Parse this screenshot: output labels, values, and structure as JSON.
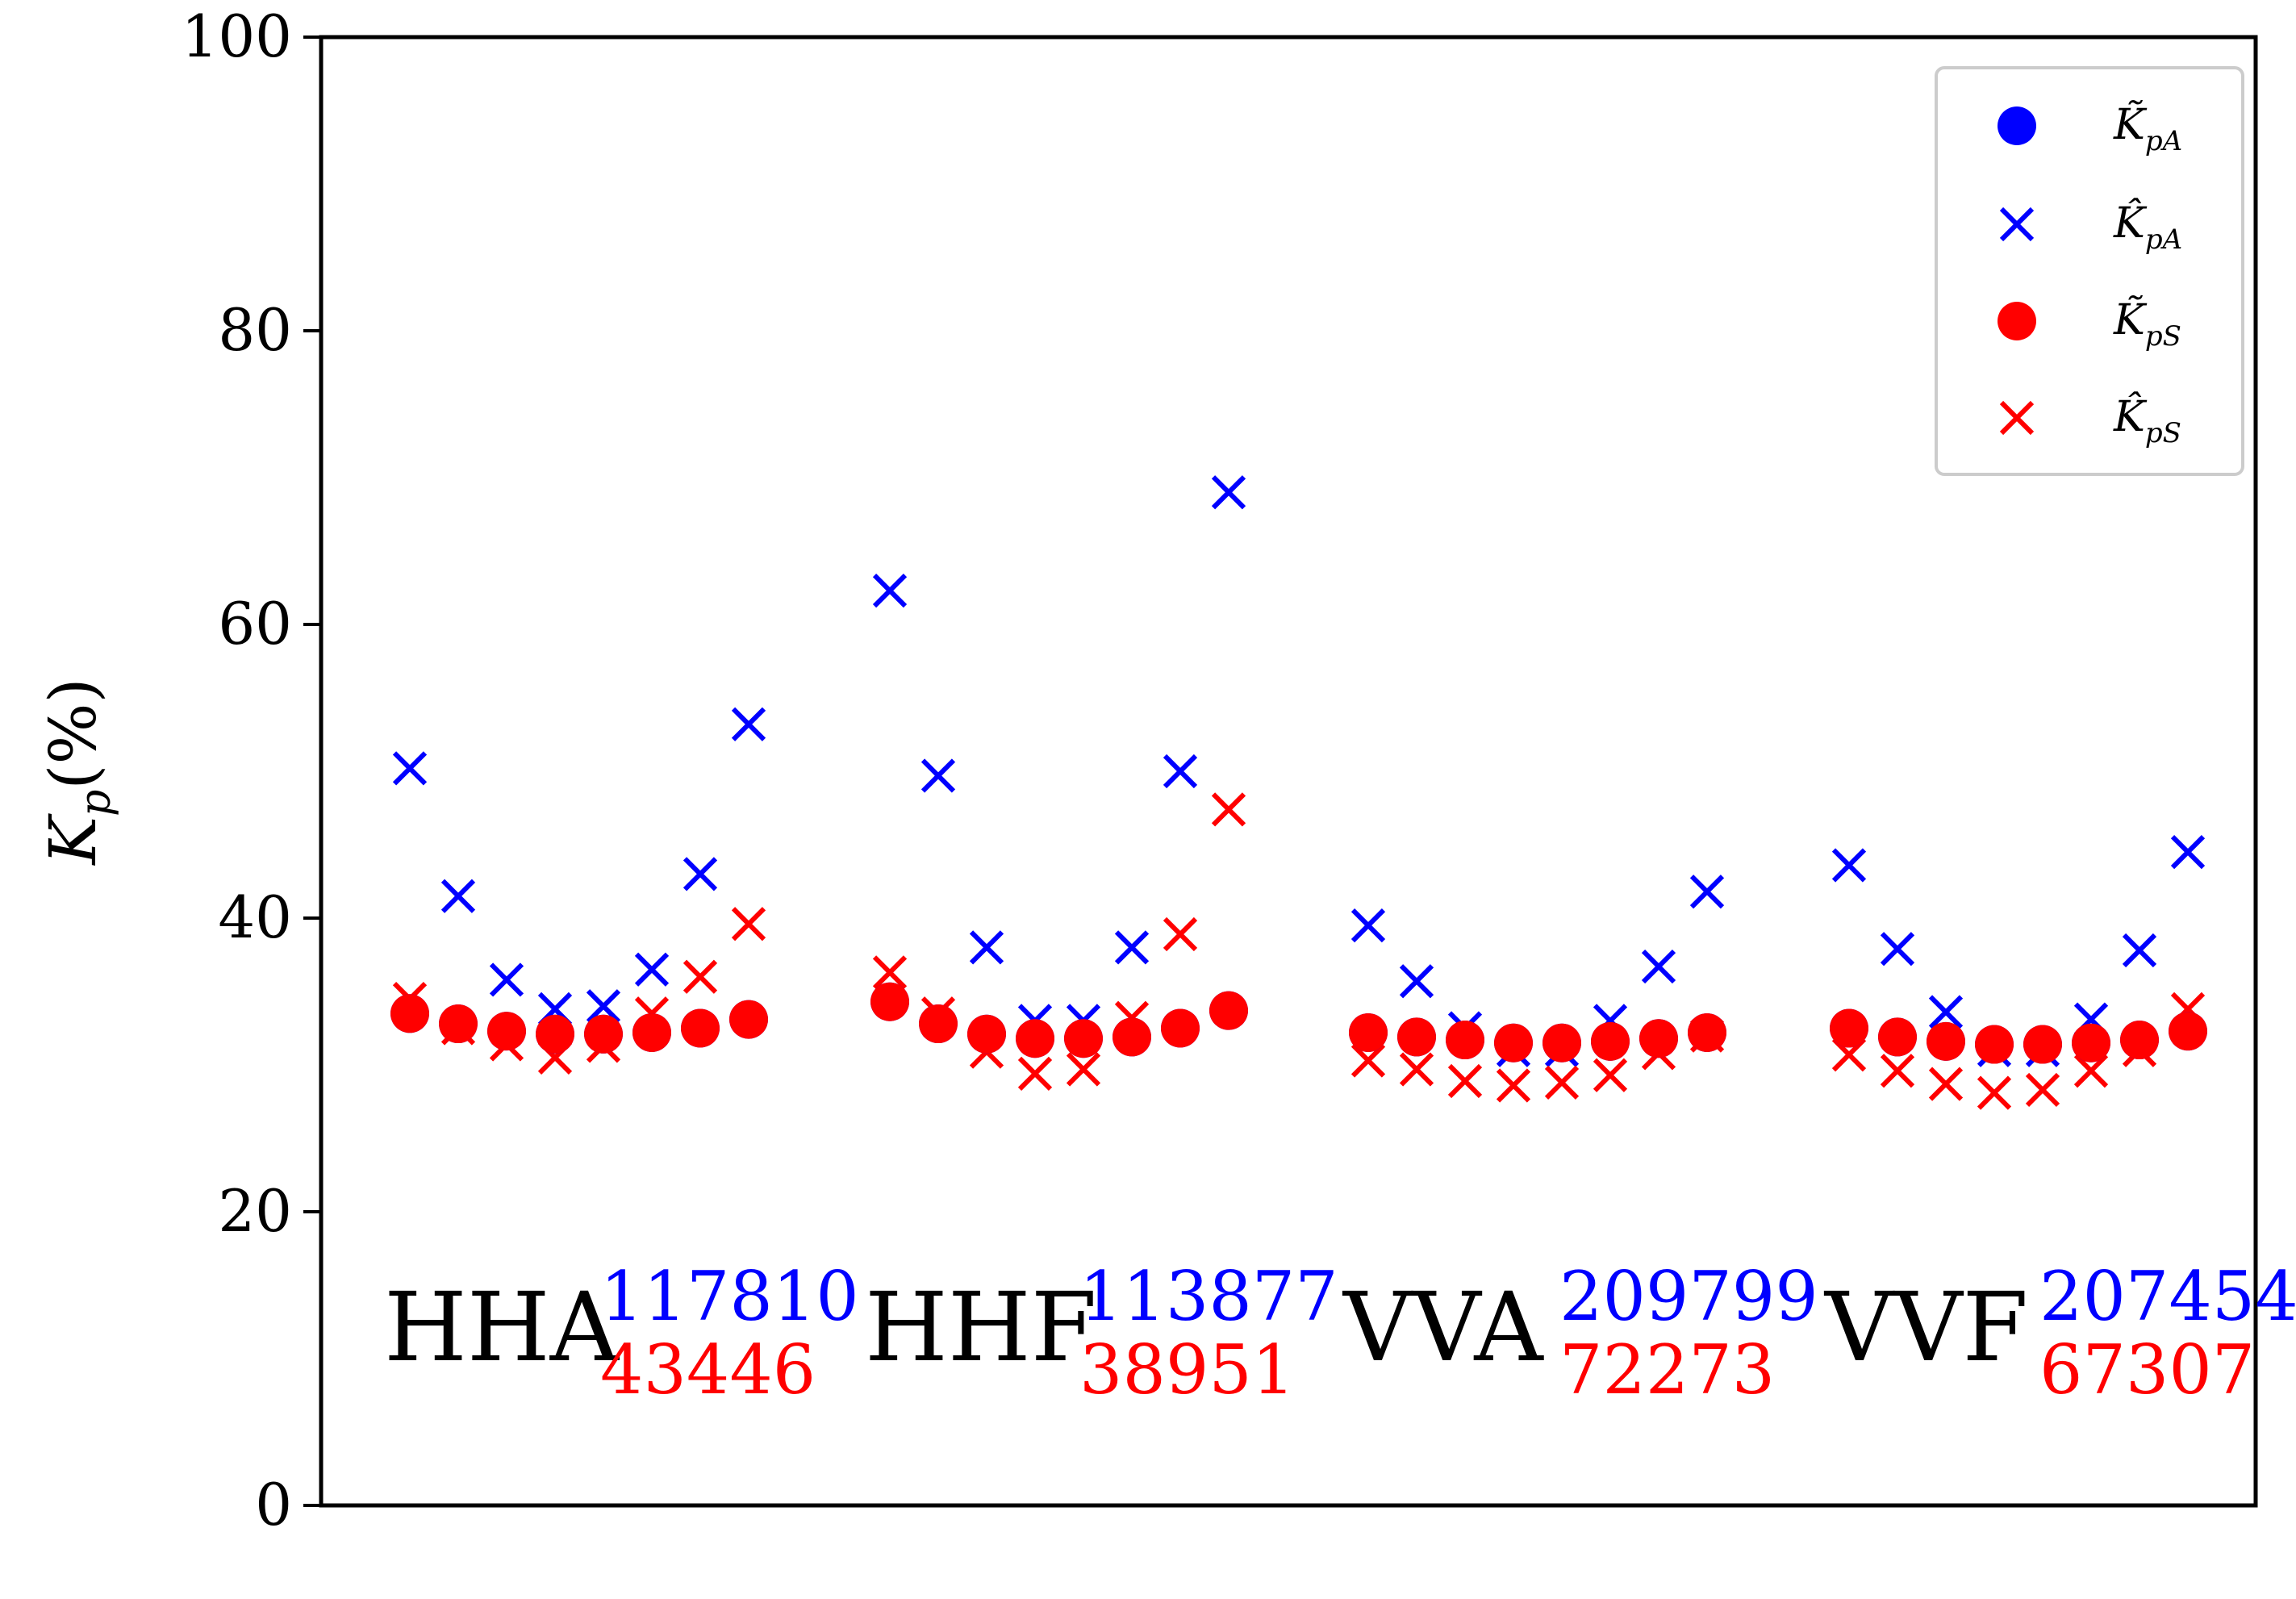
{
  "chart_data": {
    "type": "scatter",
    "title": "",
    "xlabel": "",
    "ylabel_main": "K",
    "ylabel_sub": "p",
    "ylabel_suffix": "(%)",
    "ylim": [
      0,
      100
    ],
    "yticks": [
      0,
      20,
      40,
      60,
      80,
      100
    ],
    "x_ticks_visible": false,
    "grid": false,
    "legend_position": "top-right",
    "groups": [
      {
        "name": "HHA",
        "count_blue": "117810",
        "count_red": "43446"
      },
      {
        "name": "HHF",
        "count_blue": "113877",
        "count_red": "38951"
      },
      {
        "name": "VVA",
        "count_blue": "209799",
        "count_red": "72273"
      },
      {
        "name": "VVF",
        "count_blue": "207454",
        "count_red": "67307"
      }
    ],
    "points_per_group": 8,
    "series": [
      {
        "name": "K̃pA",
        "legend_main": "K̃",
        "legend_sub": "pA",
        "marker": "circle",
        "color": "#0000ff",
        "values": [
          [
            33.5,
            32.8,
            32.3,
            32.1,
            32.1,
            32.2,
            32.5,
            33.1
          ],
          [
            34.3,
            32.8,
            32.1,
            31.8,
            31.8,
            31.9,
            32.5,
            33.7
          ],
          [
            32.2,
            31.9,
            31.7,
            31.5,
            31.5,
            31.6,
            31.8,
            32.2
          ],
          [
            32.5,
            31.9,
            31.6,
            31.4,
            31.4,
            31.5,
            31.7,
            32.3
          ]
        ]
      },
      {
        "name": "K̂pA",
        "legend_main": "K̂",
        "legend_sub": "pA",
        "marker": "x",
        "color": "#0000ff",
        "values": [
          [
            50.2,
            41.5,
            35.8,
            33.8,
            34.0,
            36.5,
            43.0,
            53.2
          ],
          [
            62.3,
            49.7,
            38.0,
            33.0,
            33.0,
            38.0,
            50.0,
            69.0
          ],
          [
            39.5,
            35.7,
            32.5,
            31.0,
            31.0,
            33.0,
            36.7,
            41.8
          ],
          [
            43.6,
            37.9,
            33.6,
            31.0,
            31.0,
            33.1,
            37.8,
            44.5
          ]
        ]
      },
      {
        "name": "K̃pS",
        "legend_main": "K̃",
        "legend_sub": "pS",
        "marker": "circle",
        "color": "#ff0000",
        "values": [
          [
            33.5,
            32.8,
            32.3,
            32.1,
            32.1,
            32.2,
            32.5,
            33.1
          ],
          [
            34.3,
            32.8,
            32.1,
            31.8,
            31.8,
            31.9,
            32.5,
            33.7
          ],
          [
            32.2,
            31.9,
            31.7,
            31.5,
            31.5,
            31.6,
            31.8,
            32.2
          ],
          [
            32.5,
            31.9,
            31.6,
            31.4,
            31.4,
            31.5,
            31.7,
            32.3
          ]
        ]
      },
      {
        "name": "K̂pS",
        "legend_main": "K̂",
        "legend_sub": "pS",
        "marker": "x",
        "color": "#ff0000",
        "values": [
          [
            34.5,
            32.5,
            31.4,
            30.5,
            31.3,
            33.5,
            36.0,
            39.6
          ],
          [
            36.3,
            33.5,
            30.9,
            29.4,
            29.7,
            33.2,
            38.9,
            47.4
          ],
          [
            30.3,
            29.7,
            28.9,
            28.6,
            28.8,
            29.3,
            30.8,
            32.0
          ],
          [
            30.7,
            29.6,
            28.7,
            28.1,
            28.3,
            29.6,
            31.0,
            33.8
          ]
        ]
      }
    ]
  }
}
